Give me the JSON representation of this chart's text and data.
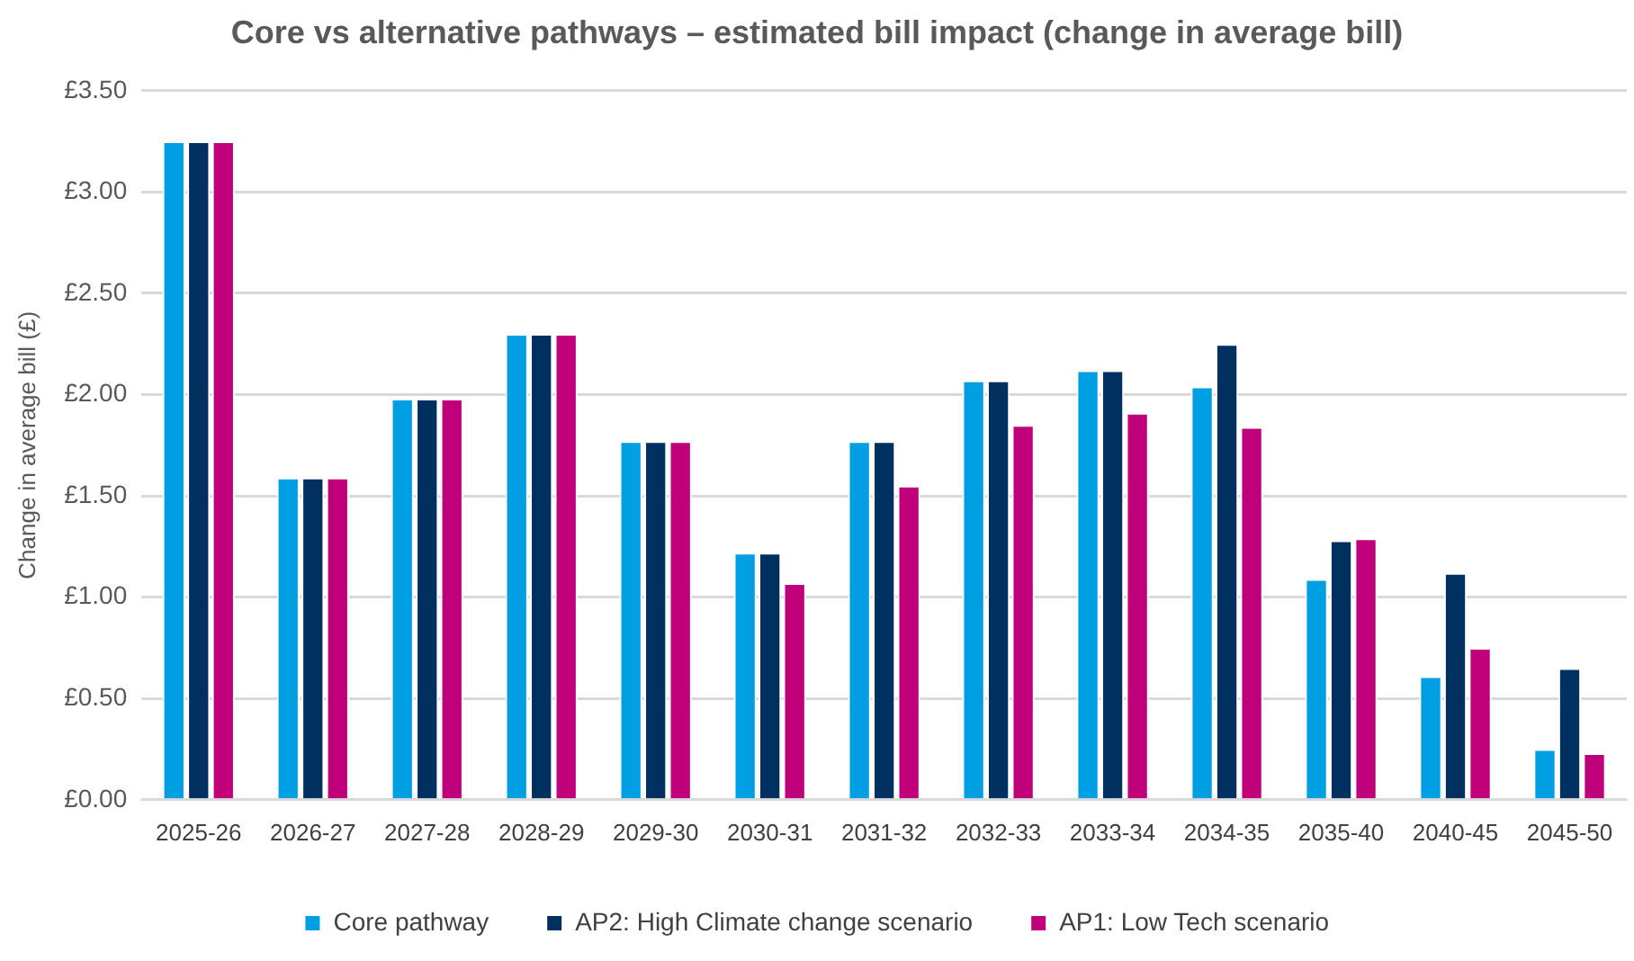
{
  "chart_data": {
    "type": "bar",
    "title": "Core vs alternative pathways – estimated bill impact (change in average bill)",
    "ylabel": "Change in average bill (£)",
    "categories": [
      "2025-26",
      "2026-27",
      "2027-28",
      "2028-29",
      "2029-30",
      "2030-31",
      "2031-32",
      "2032-33",
      "2033-34",
      "2034-35",
      "2035-40",
      "2040-45",
      "2045-50"
    ],
    "series": [
      {
        "name": "Core pathway",
        "color": "#009fe3",
        "values": [
          3.25,
          1.59,
          1.98,
          2.3,
          1.77,
          1.22,
          1.77,
          2.07,
          2.12,
          2.04,
          1.09,
          0.61,
          0.25
        ]
      },
      {
        "name": "AP2: High Climate change scenario",
        "color": "#00305f",
        "values": [
          3.25,
          1.59,
          1.98,
          2.3,
          1.77,
          1.22,
          1.77,
          2.07,
          2.12,
          2.25,
          1.28,
          1.12,
          0.65
        ]
      },
      {
        "name": "AP1: Low Tech scenario",
        "color": "#c0007a",
        "values": [
          3.25,
          1.59,
          1.98,
          2.3,
          1.77,
          1.07,
          1.55,
          1.85,
          1.91,
          1.84,
          1.29,
          0.75,
          0.23
        ]
      }
    ],
    "ylim": [
      0,
      3.5
    ],
    "yticks": [
      {
        "value": 0,
        "label": "£0.00"
      },
      {
        "value": 0.5,
        "label": "£0.50"
      },
      {
        "value": 1,
        "label": "£1.00"
      },
      {
        "value": 1.5,
        "label": "£1.50"
      },
      {
        "value": 2,
        "label": "£2.00"
      },
      {
        "value": 2.5,
        "label": "£2.50"
      },
      {
        "value": 3,
        "label": "£3.00"
      },
      {
        "value": 3.5,
        "label": "£3.50"
      }
    ],
    "grid": "y",
    "legend": "bottom"
  }
}
